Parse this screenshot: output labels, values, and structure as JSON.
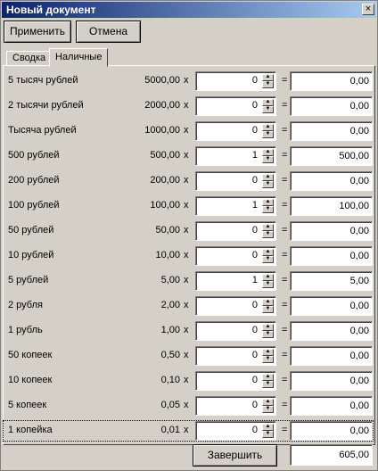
{
  "window": {
    "title": "Новый документ",
    "close_glyph": "×"
  },
  "toolbar": {
    "apply_label": "Применить",
    "cancel_label": "Отмена"
  },
  "tabs": [
    {
      "label": "Сводка",
      "active": false
    },
    {
      "label": "Наличные",
      "active": true
    }
  ],
  "symbols": {
    "times": "x",
    "equals": "="
  },
  "rows": [
    {
      "label": "5 тысяч рублей",
      "denomination": "5000,00",
      "count": "0",
      "sum": "0,00"
    },
    {
      "label": "2 тысячи рублей",
      "denomination": "2000,00",
      "count": "0",
      "sum": "0,00"
    },
    {
      "label": "Тысяча рублей",
      "denomination": "1000,00",
      "count": "0",
      "sum": "0,00"
    },
    {
      "label": "500 рублей",
      "denomination": "500,00",
      "count": "1",
      "sum": "500,00"
    },
    {
      "label": "200 рублей",
      "denomination": "200,00",
      "count": "0",
      "sum": "0,00"
    },
    {
      "label": "100 рублей",
      "denomination": "100,00",
      "count": "1",
      "sum": "100,00"
    },
    {
      "label": "50 рублей",
      "denomination": "50,00",
      "count": "0",
      "sum": "0,00"
    },
    {
      "label": "10 рублей",
      "denomination": "10,00",
      "count": "0",
      "sum": "0,00"
    },
    {
      "label": "5 рублей",
      "denomination": "5,00",
      "count": "1",
      "sum": "5,00"
    },
    {
      "label": "2 рубля",
      "denomination": "2,00",
      "count": "0",
      "sum": "0,00"
    },
    {
      "label": "1 рубль",
      "denomination": "1,00",
      "count": "0",
      "sum": "0,00"
    },
    {
      "label": "50 копеек",
      "denomination": "0,50",
      "count": "0",
      "sum": "0,00"
    },
    {
      "label": "10 копеек",
      "denomination": "0,10",
      "count": "0",
      "sum": "0,00"
    },
    {
      "label": "5 копеек",
      "denomination": "0,05",
      "count": "0",
      "sum": "0,00"
    },
    {
      "label": "1 копейка",
      "denomination": "0,01",
      "count": "0",
      "sum": "0,00"
    }
  ],
  "footer": {
    "finish_label": "Завершить",
    "total": "605,00"
  },
  "colors": {
    "face": "#d4d0c8",
    "title_start": "#0a246a",
    "title_end": "#a6caf0"
  }
}
